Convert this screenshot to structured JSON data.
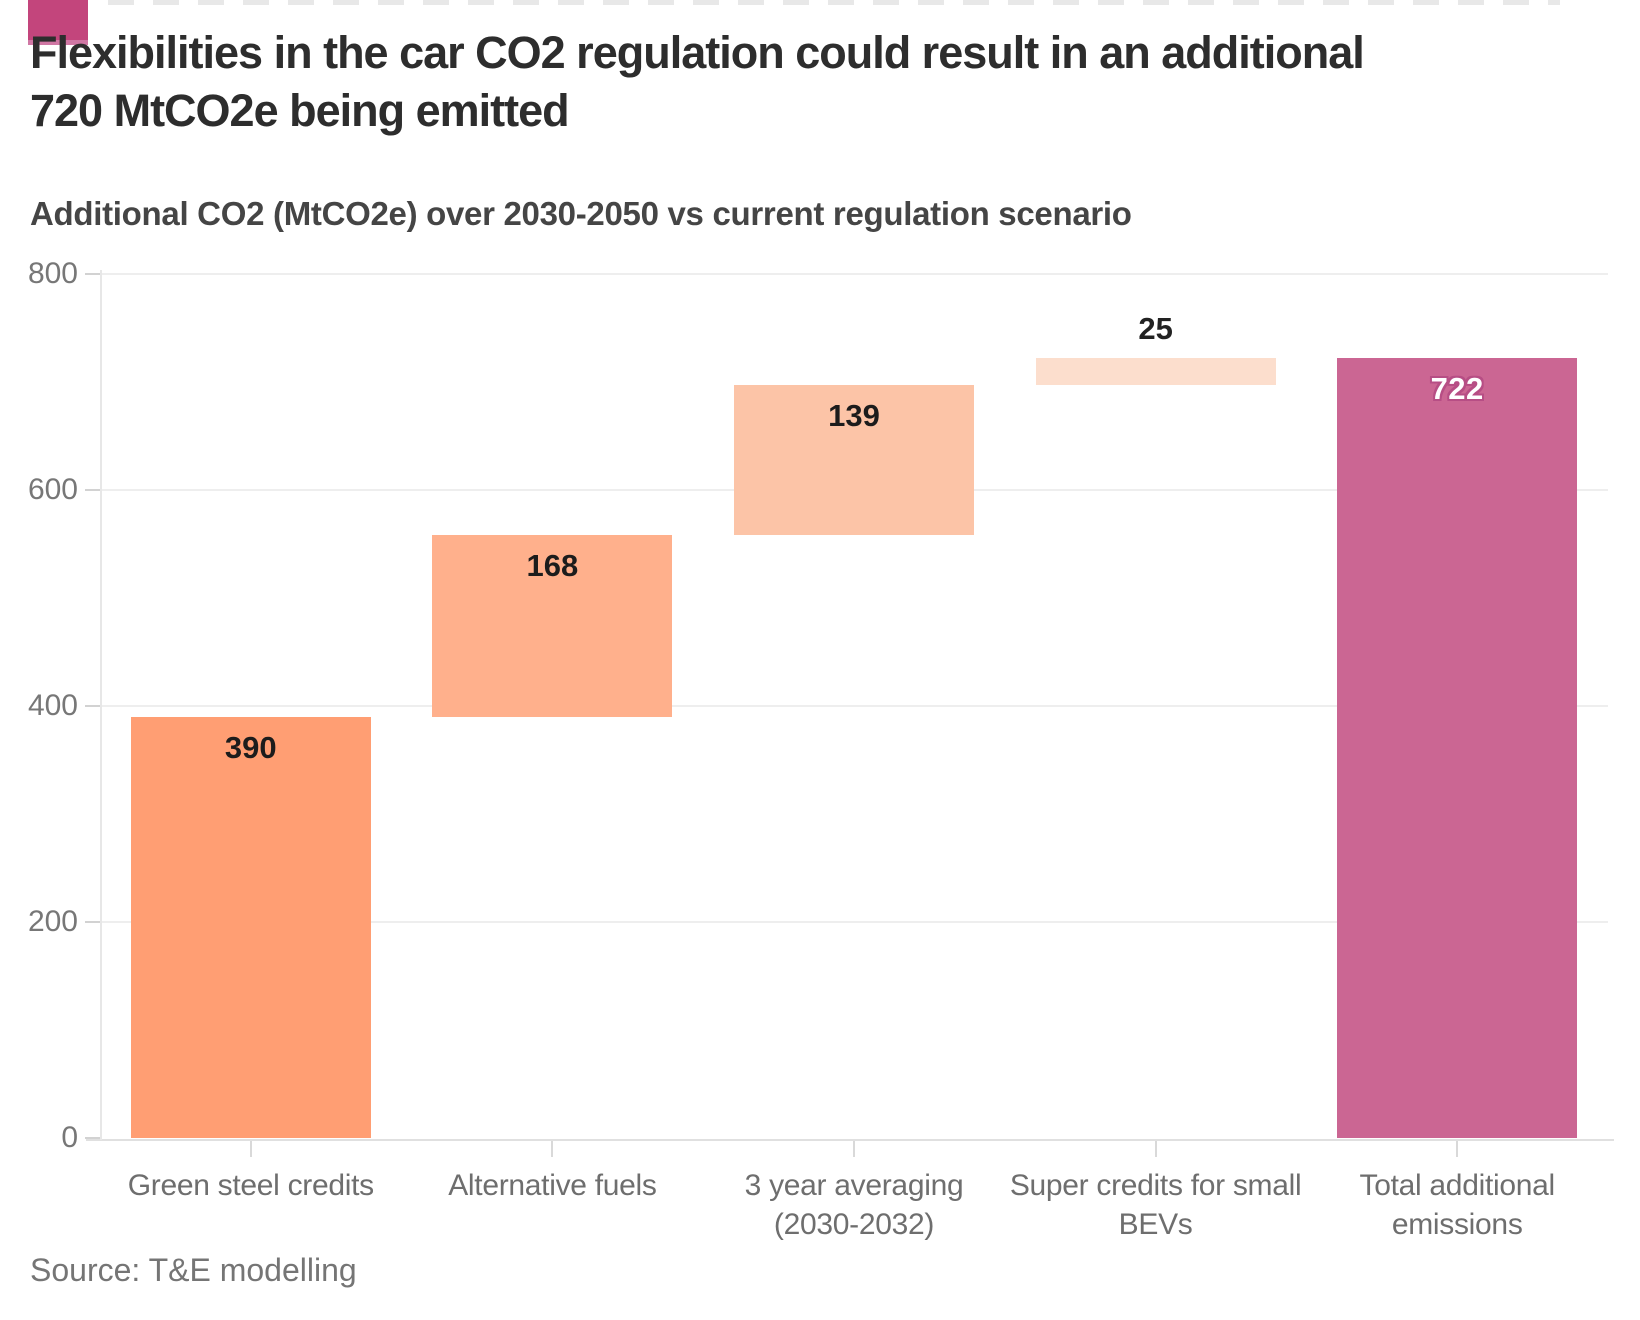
{
  "header": {
    "title_lines": [
      "Flexibilities in the car CO2 regulation could result in an additional",
      "720 MtCO2e being emitted"
    ],
    "subtitle": "Additional CO2 (MtCO2e) over 2030-2050 vs current regulation scenario"
  },
  "branding": {
    "logo_color": "#c3457c",
    "logo_edge_color": "#d077a4"
  },
  "source": "Source: T&E modelling",
  "chart_data": {
    "type": "bar",
    "subtype": "waterfall",
    "title": "Flexibilities in the car CO2 regulation could result in an additional 720 MtCO2e being emitted",
    "ylabel": "Additional CO2 (MtCO2e) over 2030-2050 vs current regulation scenario",
    "xlabel": "",
    "ylim": [
      0,
      800
    ],
    "grid": "horizontal",
    "legend": "none",
    "categories": [
      "Green steel credits",
      "Alternative fuels",
      "3 year averaging\n(2030-2032)",
      "Super credits for small\nBEVs",
      "Total additional\nemissions"
    ],
    "values": [
      390,
      168,
      139,
      25,
      722
    ],
    "y_ticks": [
      {
        "value": 0,
        "label": "0"
      },
      {
        "value": 200,
        "label": "200"
      },
      {
        "value": 400,
        "label": "400"
      },
      {
        "value": 600,
        "label": "600"
      },
      {
        "value": 800,
        "label": "800"
      }
    ],
    "bars": [
      {
        "category": "Green steel credits",
        "value": 390,
        "value_label": "390",
        "start": 0,
        "end": 390,
        "color": "#ff9e73",
        "label_color": "#1c1c1c",
        "label_position": "inside-top"
      },
      {
        "category": "Alternative fuels",
        "value": 168,
        "value_label": "168",
        "start": 390,
        "end": 558,
        "color": "#ffb08c",
        "label_color": "#1c1c1c",
        "label_position": "inside-top"
      },
      {
        "category": "3 year averaging\n(2030-2032)",
        "value": 139,
        "value_label": "139",
        "start": 558,
        "end": 697,
        "color": "#fcc4a7",
        "label_color": "#1c1c1c",
        "label_position": "inside-top"
      },
      {
        "category": "Super credits for small\nBEVs",
        "value": 25,
        "value_label": "25",
        "start": 697,
        "end": 722,
        "color": "#fcdecd",
        "label_color": "#222222",
        "label_position": "above"
      },
      {
        "category": "Total additional\nemissions",
        "value": 722,
        "value_label": "722",
        "start": 0,
        "end": 722,
        "color": "#cb6693",
        "label_color": "#ffffff",
        "label_outline": "#b74e85",
        "label_position": "inside-top"
      }
    ]
  }
}
